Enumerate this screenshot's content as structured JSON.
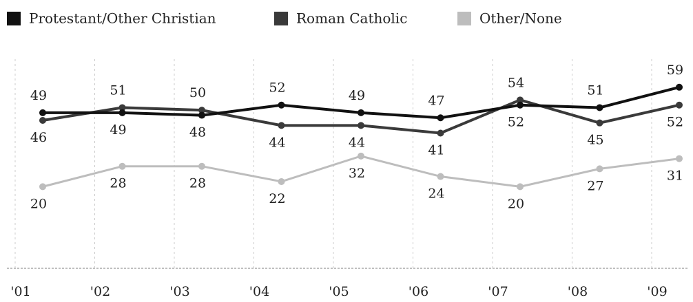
{
  "chart_data": {
    "type": "line",
    "categories": [
      "'01",
      "'02",
      "'03",
      "'04",
      "'05",
      "'06",
      "'07",
      "'08",
      "'09"
    ],
    "series": [
      {
        "name": "Protestant/Other Christian",
        "color": "#111111",
        "values": [
          49,
          49,
          48,
          52,
          49,
          47,
          52,
          51,
          59
        ]
      },
      {
        "name": "Roman Catholic",
        "color": "#3a3a3a",
        "values": [
          46,
          51,
          50,
          44,
          44,
          41,
          54,
          45,
          52
        ]
      },
      {
        "name": "Other/None",
        "color": "#bdbdbd",
        "values": [
          20,
          28,
          28,
          22,
          32,
          24,
          20,
          27,
          31
        ]
      }
    ],
    "ylim": [
      -12,
      70
    ],
    "legend": "top"
  }
}
